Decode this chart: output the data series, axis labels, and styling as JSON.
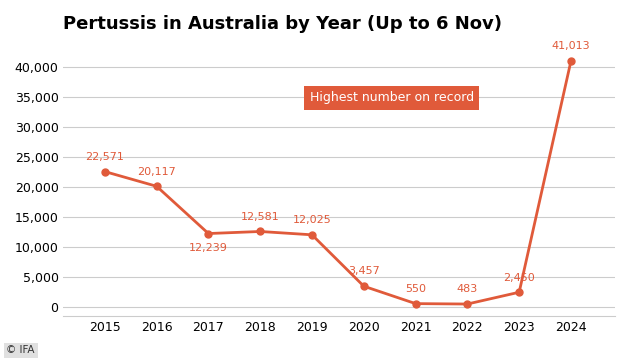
{
  "title": "Pertussis in Australia by Year (Up to 6 Nov)",
  "years": [
    2015,
    2016,
    2017,
    2018,
    2019,
    2020,
    2021,
    2022,
    2023,
    2024
  ],
  "values": [
    22571,
    20117,
    12239,
    12581,
    12025,
    3457,
    550,
    483,
    2450,
    41013
  ],
  "labels": [
    "22,571",
    "20,117",
    "12,239",
    "12,581",
    "12,025",
    "3,457",
    "550",
    "483",
    "2,450",
    "41,013"
  ],
  "line_color": "#e05a3a",
  "marker_color": "#e05a3a",
  "background_color": "#ffffff",
  "annotation_box_color": "#e05a3a",
  "annotation_text": "Highest number on record",
  "annotation_text_color": "#ffffff",
  "yticks": [
    0,
    5000,
    10000,
    15000,
    20000,
    25000,
    30000,
    35000,
    40000
  ],
  "ytick_labels": [
    "0",
    "5,000",
    "10,000",
    "15,000",
    "20,000",
    "25,000",
    "30,000",
    "35,000",
    "40,000"
  ],
  "ylim": [
    -1500,
    44000
  ],
  "xlim": [
    2014.2,
    2024.85
  ],
  "grid_color": "#cccccc",
  "title_fontsize": 13,
  "tick_fontsize": 9,
  "label_fontsize": 8,
  "watermark": "© IFA"
}
